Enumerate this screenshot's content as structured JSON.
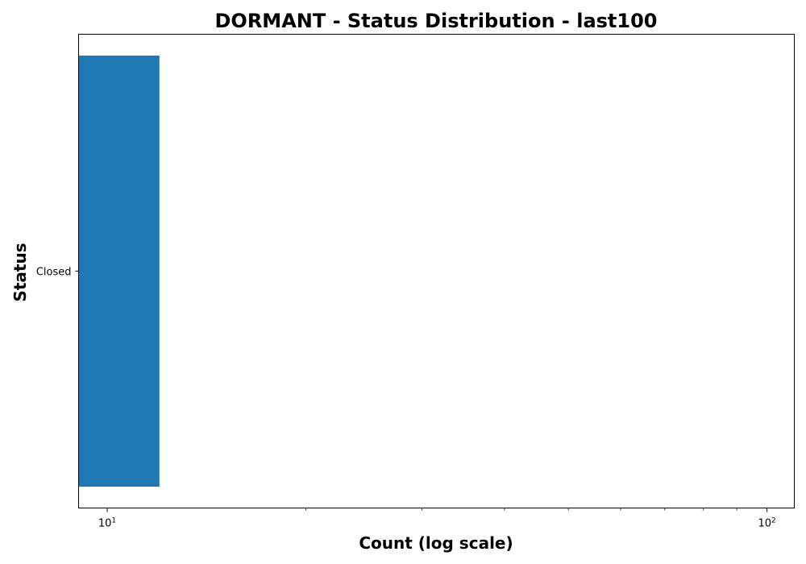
{
  "chart_data": {
    "type": "bar",
    "orientation": "horizontal",
    "title": "DORMANT - Status Distribution - last100",
    "xlabel": "Count (log scale)",
    "ylabel": "Status",
    "x_scale": "log",
    "xlim": [
      9.05,
      110
    ],
    "x_ticks": [
      {
        "value": 10,
        "base": "10",
        "exp": "1"
      },
      {
        "value": 100,
        "base": "10",
        "exp": "2"
      }
    ],
    "categories": [
      "Closed"
    ],
    "values": [
      12
    ],
    "bar_color": "#1f77b4",
    "grid": false,
    "legend": "none"
  }
}
